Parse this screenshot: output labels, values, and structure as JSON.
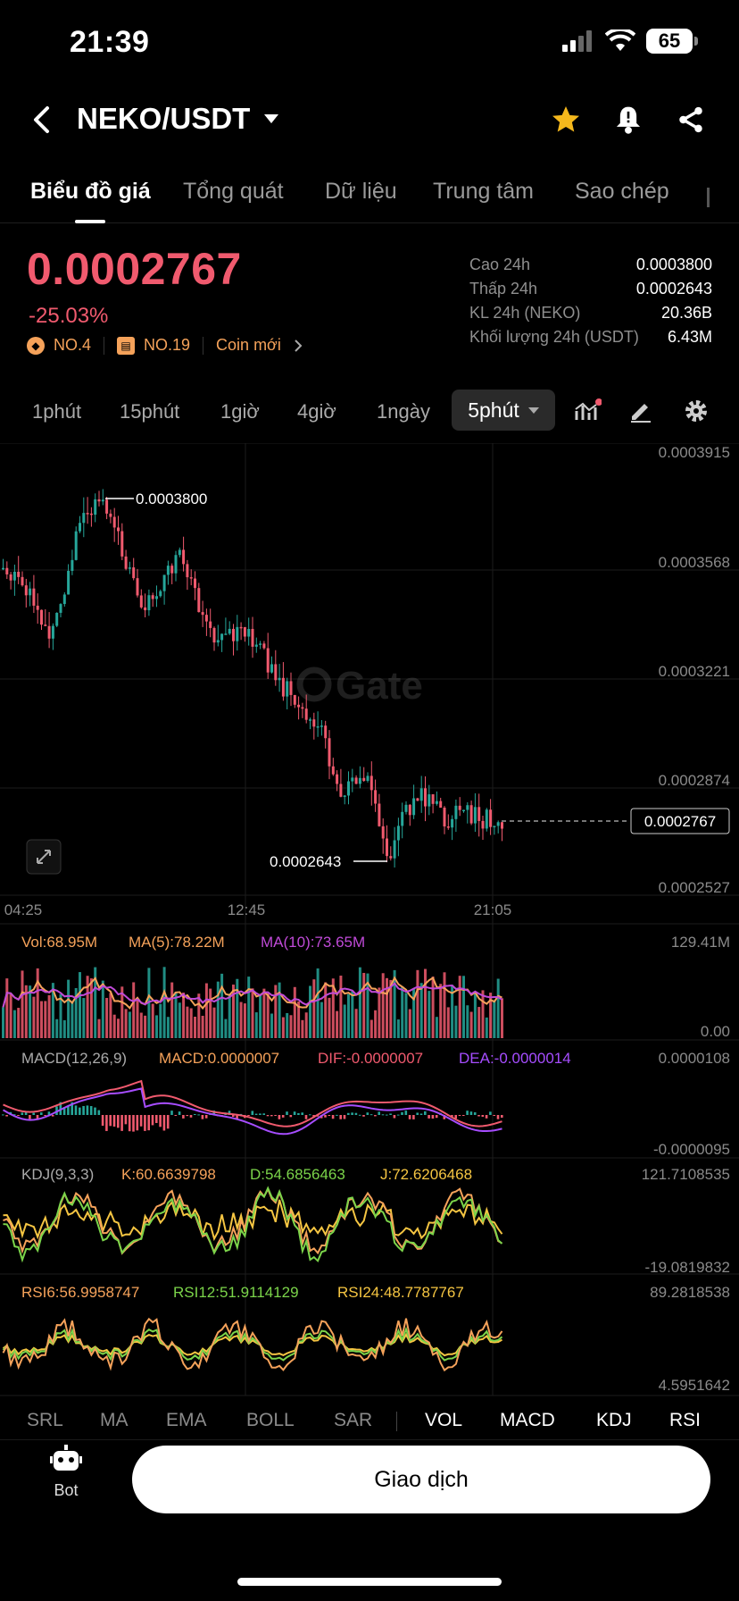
{
  "status": {
    "time": "21:39",
    "battery": "65"
  },
  "header": {
    "pair": "NEKO/USDT"
  },
  "tabs": [
    "Biểu đồ giá",
    "Tổng quát",
    "Dữ liệu",
    "Trung tâm",
    "Sao chép"
  ],
  "price": {
    "last": "0.0002767",
    "change": "-25.03%",
    "rank1": "NO.4",
    "rank2": "NO.19",
    "new_coin": "Coin mới"
  },
  "stats": [
    {
      "label": "Cao 24h",
      "value": "0.0003800"
    },
    {
      "label": "Thấp 24h",
      "value": "0.0002643"
    },
    {
      "label": "KL 24h (NEKO)",
      "value": "20.36B"
    },
    {
      "label": "Khối lượng 24h (USDT)",
      "value": "6.43M"
    }
  ],
  "intervals": [
    "1phút",
    "15phút",
    "1giờ",
    "4giờ",
    "1ngày"
  ],
  "active_interval": "5phút",
  "chart": {
    "price_axis": [
      "0.0003915",
      "0.0003568",
      "0.0003221",
      "0.0002874",
      "0.0002527"
    ],
    "current_price_label": "0.0002767",
    "high_label": "0.0003800",
    "low_label": "0.0002643",
    "time_axis": [
      "04:25",
      "12:45",
      "21:05"
    ],
    "watermark": "Gate",
    "vol": {
      "vol": "Vol:68.95M",
      "ma5": "MA(5):78.22M",
      "ma10": "MA(10):73.65M",
      "top": "129.41M",
      "bottom": "0.00"
    },
    "macd": {
      "name": "MACD(12,26,9)",
      "macd": "MACD:0.0000007",
      "dif": "DIF:-0.0000007",
      "dea": "DEA:-0.0000014",
      "top": "0.0000108",
      "bottom": "-0.0000095"
    },
    "kdj": {
      "name": "KDJ(9,3,3)",
      "k": "K:60.6639798",
      "d": "D:54.6856463",
      "j": "J:72.6206468",
      "top": "121.7108535",
      "bottom": "-19.0819832"
    },
    "rsi": {
      "rsi6": "RSI6:56.9958747",
      "rsi12": "RSI12:51.9114129",
      "rsi24": "RSI24:48.7787767",
      "top": "89.2818538",
      "bottom": "4.5951642"
    }
  },
  "indicators": [
    "SRL",
    "MA",
    "EMA",
    "BOLL",
    "SAR",
    "VOL",
    "MACD",
    "KDJ",
    "RSI"
  ],
  "bottom": {
    "bot_label": "Bot",
    "trade_label": "Giao dịch"
  },
  "colors": {
    "up": "#26a69a",
    "down": "#f05a6e",
    "accent": "#f5a25a",
    "macd_dea": "#a64dff",
    "ma5": "#f5a25a",
    "ma10": "#c04ad8"
  }
}
